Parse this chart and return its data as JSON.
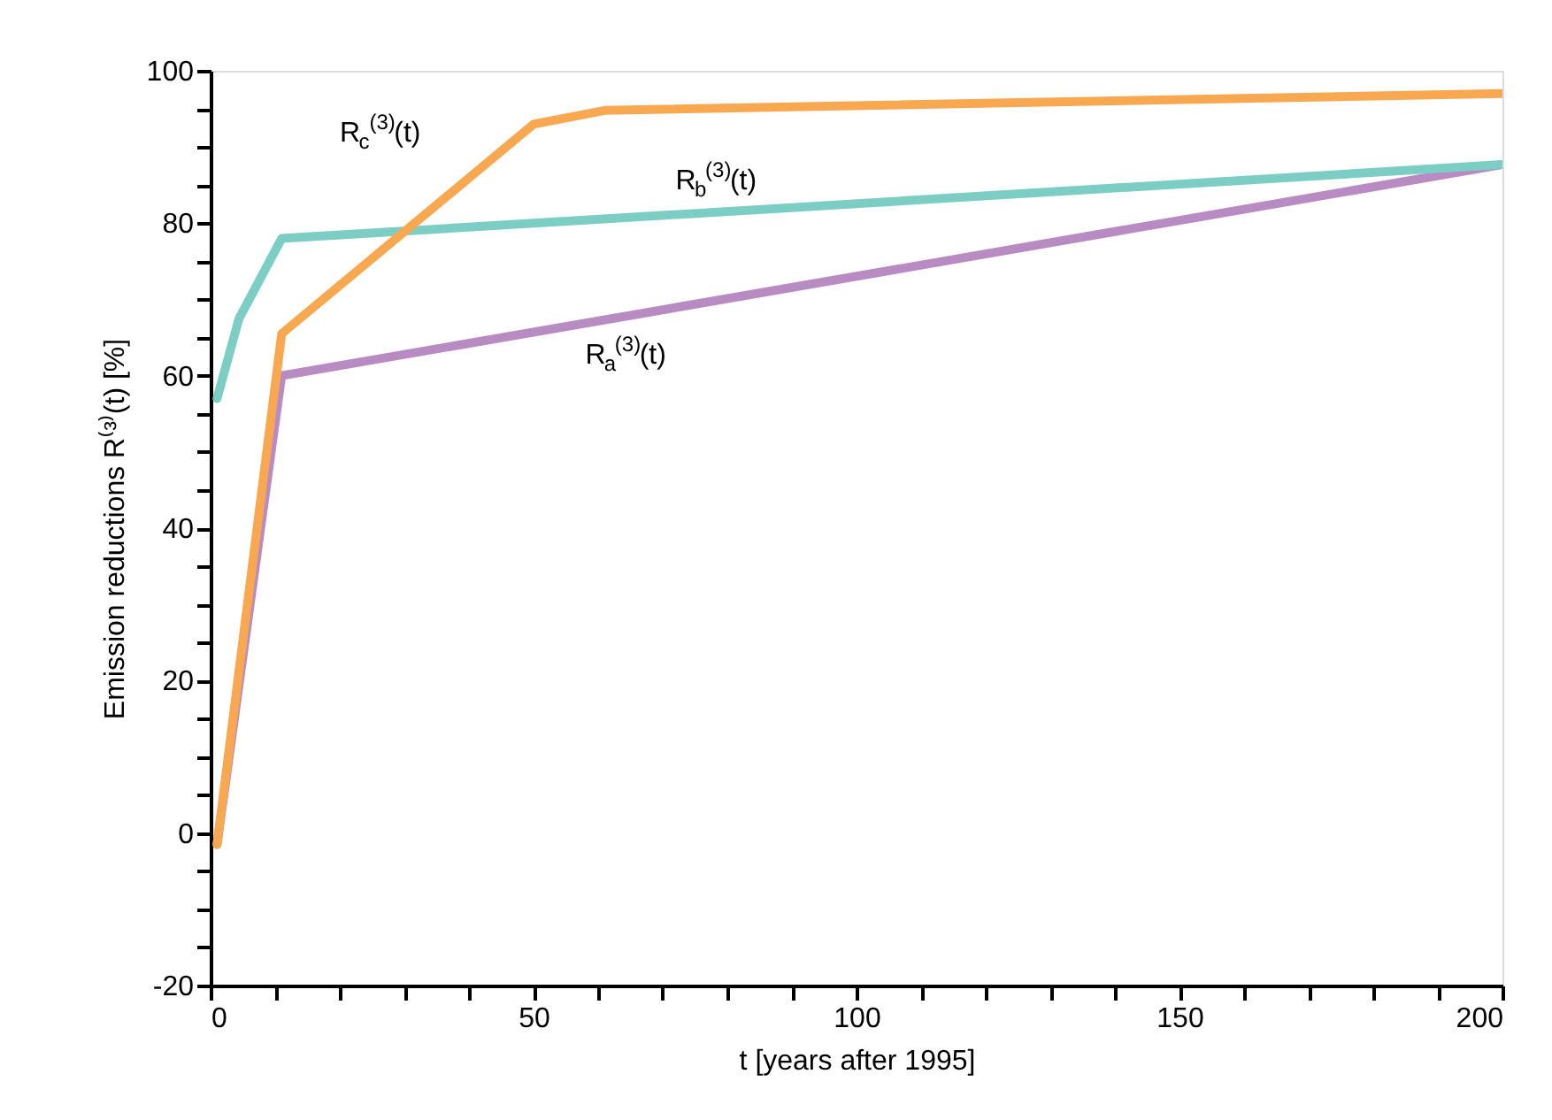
{
  "chart_data": {
    "type": "line",
    "xlabel": "t [years after 1995]",
    "ylabel": "Emission reductions R⁽³⁾(t)  [%]",
    "xlim": [
      0,
      200
    ],
    "ylim": [
      -20,
      100
    ],
    "xticks": [
      0,
      {
        "value": 10,
        "label": null
      },
      {
        "value": 20,
        "label": null
      },
      {
        "value": 30,
        "label": null
      },
      {
        "value": 40,
        "label": null
      },
      50,
      {
        "value": 60,
        "label": null
      },
      {
        "value": 70,
        "label": null
      },
      {
        "value": 80,
        "label": null
      },
      {
        "value": 90,
        "label": null
      },
      100,
      {
        "value": 110,
        "label": null
      },
      {
        "value": 120,
        "label": null
      },
      {
        "value": 130,
        "label": null
      },
      {
        "value": 140,
        "label": null
      },
      150,
      {
        "value": 160,
        "label": null
      },
      {
        "value": 170,
        "label": null
      },
      {
        "value": 180,
        "label": null
      },
      {
        "value": 190,
        "label": null
      },
      200
    ],
    "yticks": [
      -20,
      {
        "value": -15,
        "label": null
      },
      {
        "value": -10,
        "label": null
      },
      {
        "value": -5,
        "label": null
      },
      0,
      {
        "value": 5,
        "label": null
      },
      {
        "value": 10,
        "label": null
      },
      {
        "value": 15,
        "label": null
      },
      20,
      {
        "value": 25,
        "label": null
      },
      {
        "value": 30,
        "label": null
      },
      {
        "value": 35,
        "label": null
      },
      40,
      {
        "value": 45,
        "label": null
      },
      {
        "value": 50,
        "label": null
      },
      {
        "value": 55,
        "label": null
      },
      60,
      {
        "value": 65,
        "label": null
      },
      {
        "value": 70,
        "label": null
      },
      {
        "value": 75,
        "label": null
      },
      80,
      {
        "value": 85,
        "label": null
      },
      {
        "value": 90,
        "label": null
      },
      {
        "value": 95,
        "label": null
      },
      100
    ],
    "grid": false,
    "marker": "none",
    "line_style": "solid",
    "series": [
      {
        "color": "#b88bc2",
        "x": [
          1,
          11,
          200
        ],
        "values": [
          -1.5,
          60,
          87.7
        ]
      },
      {
        "color": "#7ccdc4",
        "x": [
          1,
          4.4,
          11,
          200
        ],
        "values": [
          57,
          67.5,
          78,
          87.7
        ]
      },
      {
        "color": "#f9a852",
        "x": [
          1,
          11,
          50,
          61,
          200
        ],
        "values": [
          -1.5,
          65.5,
          93,
          94.8,
          97
        ]
      }
    ],
    "annotations": [
      "R$_{c}$$^{(3)}$(t)",
      "R$_{b}$$^{(3)}$(t)",
      "R$_{a}$$^{(3)}$(t)"
    ]
  }
}
